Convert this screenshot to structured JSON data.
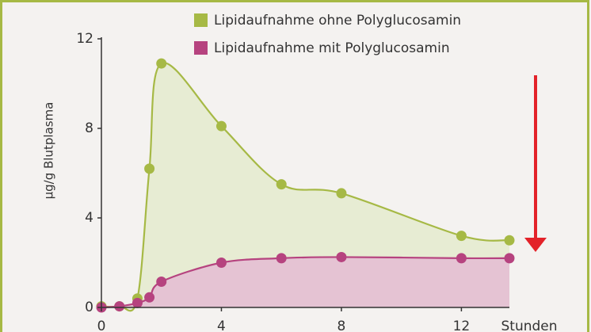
{
  "chart_data": {
    "type": "area",
    "y_label": "µg/g Blutplasma",
    "x_label": "Stunden",
    "x": [
      0,
      0.6,
      1.2,
      1.6,
      2.0,
      4,
      6,
      8,
      12,
      13.6
    ],
    "series": [
      {
        "name": "Lipidaufnahme ohne Polyglucosamin",
        "color": "#a6b945",
        "fill": "#e7ecd3",
        "values": [
          0.05,
          0.05,
          0.4,
          6.2,
          10.9,
          8.1,
          5.5,
          5.1,
          3.2,
          3.0
        ]
      },
      {
        "name": "Lipidaufnahme mit Polyglucosamin",
        "color": "#b6437f",
        "fill": "#e5c3d3",
        "values": [
          0,
          0.05,
          0.2,
          0.45,
          1.15,
          2.0,
          2.2,
          2.25,
          2.2,
          2.2
        ]
      }
    ],
    "xlim": [
      0,
      13.6
    ],
    "ylim": [
      0,
      12
    ],
    "xticks": [
      0,
      4,
      8,
      12
    ],
    "yticks": [
      0,
      4,
      8,
      12
    ]
  }
}
